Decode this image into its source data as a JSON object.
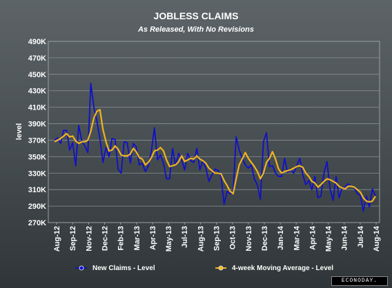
{
  "chart_data": {
    "type": "line",
    "title": "JOBLESS CLAIMS",
    "subtitle": "As Released, With No Revisions",
    "ylabel": "level",
    "xlabel": "",
    "ylim": [
      270000,
      490000
    ],
    "yticks": [
      {
        "value": 270000,
        "label": "270K"
      },
      {
        "value": 290000,
        "label": "290K"
      },
      {
        "value": 310000,
        "label": "310K"
      },
      {
        "value": 330000,
        "label": "330K"
      },
      {
        "value": 350000,
        "label": "350K"
      },
      {
        "value": 370000,
        "label": "370K"
      },
      {
        "value": 390000,
        "label": "390K"
      },
      {
        "value": 410000,
        "label": "410K"
      },
      {
        "value": 430000,
        "label": "430K"
      },
      {
        "value": 450000,
        "label": "450K"
      },
      {
        "value": 470000,
        "label": "470K"
      },
      {
        "value": 490000,
        "label": "490K"
      }
    ],
    "xticks": [
      "Aug-12",
      "Sep-12",
      "Nov-12",
      "Dec-12",
      "Feb-13",
      "Mar-13",
      "Apr-13",
      "May-13",
      "Jul-13",
      "Aug-13",
      "Sep-13",
      "Oct-13",
      "Nov-13",
      "Dec-13",
      "Jan-14",
      "Mar-14",
      "Apr-14",
      "May-14",
      "Jun-14",
      "Jul-14",
      "Aug-14"
    ],
    "grid": true,
    "legend_position": "bottom",
    "series": [
      {
        "name": "New Claims - Level",
        "color": "#1010c8",
        "values": [
          370000,
          373000,
          366000,
          382000,
          382000,
          358000,
          367000,
          339000,
          388000,
          369000,
          363000,
          355000,
          439000,
          410000,
          393000,
          372000,
          343000,
          361000,
          350000,
          372000,
          371000,
          335000,
          330000,
          368000,
          367000,
          342000,
          366000,
          362000,
          340000,
          342000,
          332000,
          339000,
          357000,
          385000,
          346000,
          352000,
          342000,
          323000,
          323000,
          360000,
          339000,
          354000,
          346000,
          334000,
          354000,
          345000,
          343000,
          360000,
          334000,
          345000,
          336000,
          320000,
          328000,
          335000,
          333000,
          326000,
          292000,
          308000,
          305000,
          307000,
          374000,
          358000,
          348000,
          340000,
          336000,
          340000,
          323000,
          316000,
          298000,
          368000,
          379000,
          338000,
          339000,
          330000,
          326000,
          326000,
          348000,
          331000,
          334000,
          330000,
          339000,
          348000,
          328000,
          316000,
          321000,
          310000,
          326000,
          300000,
          302000,
          330000,
          344000,
          311000,
          297000,
          326000,
          300000,
          312000,
          313000,
          317000,
          314000,
          312000,
          305000,
          303000,
          284000,
          302000,
          289000,
          311000,
          302000
        ]
      },
      {
        "name": "4-week Moving Average - Level",
        "color": "#f0b420",
        "values": [
          368000,
          370000,
          372000,
          375000,
          378000,
          374000,
          375000,
          369000,
          366000,
          368000,
          368000,
          370000,
          381000,
          397000,
          405000,
          407000,
          383000,
          368000,
          357000,
          358000,
          363000,
          359000,
          352000,
          351000,
          351000,
          353000,
          360000,
          356000,
          349000,
          347000,
          340000,
          343000,
          349000,
          357000,
          358000,
          361000,
          357000,
          346000,
          338000,
          339000,
          340000,
          344000,
          351000,
          344000,
          346000,
          348000,
          347000,
          351000,
          347000,
          345000,
          342000,
          336000,
          333000,
          330000,
          330000,
          329000,
          321000,
          315000,
          308000,
          305000,
          323000,
          340000,
          347000,
          355000,
          348000,
          343000,
          338000,
          332000,
          323000,
          330000,
          343000,
          348000,
          356000,
          347000,
          335000,
          330000,
          332000,
          333000,
          334000,
          336000,
          338000,
          339000,
          337000,
          330000,
          326000,
          320000,
          318000,
          313000,
          316000,
          320000,
          323000,
          322000,
          320000,
          318000,
          314000,
          312000,
          311000,
          314000,
          314000,
          313000,
          310000,
          307000,
          300000,
          296000,
          295000,
          296000,
          302000
        ]
      }
    ]
  },
  "branding": {
    "name": "ECONODAY."
  }
}
